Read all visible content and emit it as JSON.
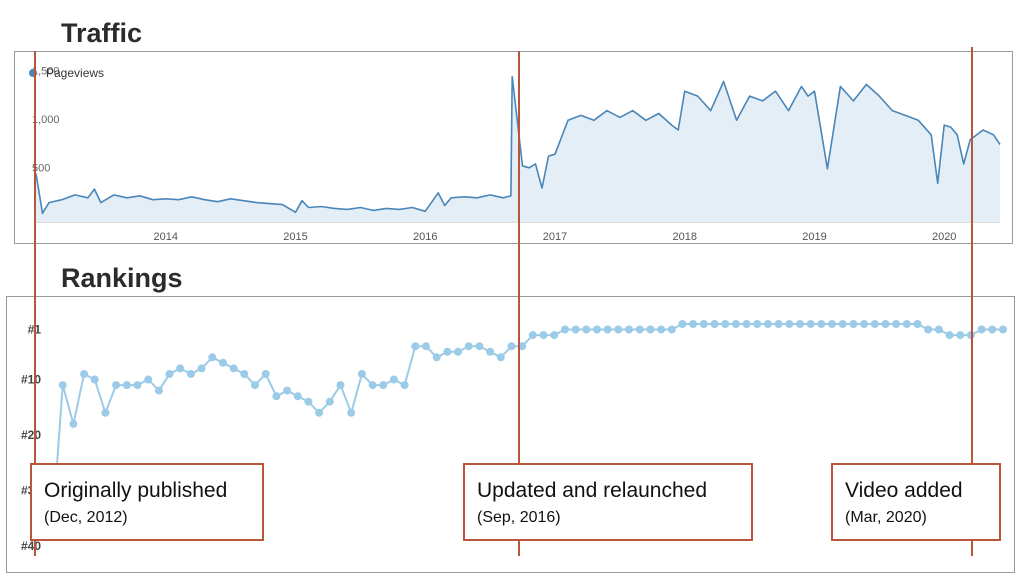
{
  "titles": {
    "traffic": "Traffic",
    "rankings": "Rankings"
  },
  "colors": {
    "traffic_line": "#4a86b8",
    "traffic_fill": "#e4eef7",
    "rank_line": "#9ccbe8",
    "marker_line": "#b8553a"
  },
  "chart_data": [
    {
      "type": "area",
      "title": "Traffic",
      "legend": {
        "entries": [
          "Pageviews"
        ],
        "placement": "top-left"
      },
      "grid": false,
      "xlim": [
        2013.0,
        2020.43
      ],
      "ylim": [
        0,
        1600
      ],
      "x_ticks": [
        "2014",
        "2015",
        "2016",
        "2017",
        "2018",
        "2019",
        "2020"
      ],
      "y_ticks": [
        "500",
        "1,000",
        "1,500"
      ],
      "series": [
        {
          "name": "Pageviews",
          "x": [
            2013.0,
            2013.05,
            2013.1,
            2013.2,
            2013.3,
            2013.4,
            2013.45,
            2013.5,
            2013.6,
            2013.7,
            2013.8,
            2013.9,
            2014.0,
            2014.1,
            2014.2,
            2014.3,
            2014.4,
            2014.5,
            2014.6,
            2014.7,
            2014.8,
            2014.9,
            2015.0,
            2015.05,
            2015.1,
            2015.2,
            2015.3,
            2015.4,
            2015.5,
            2015.6,
            2015.7,
            2015.8,
            2015.9,
            2016.0,
            2016.1,
            2016.15,
            2016.2,
            2016.3,
            2016.4,
            2016.5,
            2016.6,
            2016.66,
            2016.67,
            2016.75,
            2016.8,
            2016.85,
            2016.9,
            2016.95,
            2017.0,
            2017.1,
            2017.2,
            2017.3,
            2017.4,
            2017.5,
            2017.6,
            2017.7,
            2017.8,
            2017.9,
            2017.95,
            2018.0,
            2018.1,
            2018.2,
            2018.3,
            2018.4,
            2018.5,
            2018.6,
            2018.7,
            2018.8,
            2018.9,
            2018.95,
            2019.0,
            2019.1,
            2019.2,
            2019.3,
            2019.4,
            2019.5,
            2019.6,
            2019.7,
            2019.8,
            2019.9,
            2019.95,
            2020.0,
            2020.05,
            2020.1,
            2020.15,
            2020.2,
            2020.3,
            2020.38,
            2020.43
          ],
          "values": [
            500,
            90,
            200,
            230,
            280,
            250,
            340,
            200,
            280,
            250,
            270,
            230,
            240,
            230,
            260,
            230,
            210,
            240,
            220,
            200,
            190,
            180,
            100,
            220,
            150,
            160,
            140,
            130,
            150,
            120,
            140,
            130,
            150,
            110,
            300,
            170,
            250,
            260,
            250,
            280,
            250,
            270,
            1500,
            580,
            560,
            600,
            350,
            680,
            700,
            1050,
            1100,
            1050,
            1150,
            1080,
            1150,
            1050,
            1120,
            1000,
            950,
            1350,
            1300,
            1150,
            1450,
            1050,
            1300,
            1250,
            1350,
            1150,
            1400,
            1300,
            1350,
            550,
            1400,
            1250,
            1420,
            1300,
            1150,
            1100,
            1050,
            900,
            400,
            1000,
            980,
            900,
            600,
            850,
            950,
            900,
            800
          ]
        }
      ]
    },
    {
      "type": "line",
      "title": "Rankings",
      "grid": false,
      "ylim": [
        40,
        0
      ],
      "y_ticks": [
        "#1",
        "#10",
        "#20",
        "#30",
        "#40"
      ],
      "series": [
        {
          "name": "",
          "values": [
            38,
            11,
            18,
            9,
            10,
            16,
            11,
            11,
            11,
            10,
            12,
            9,
            8,
            9,
            8,
            6,
            7,
            8,
            9,
            11,
            9,
            13,
            12,
            13,
            14,
            16,
            14,
            11,
            16,
            9,
            11,
            11,
            10,
            11,
            4,
            4,
            6,
            5,
            5,
            4,
            4,
            5,
            6,
            4,
            4,
            2,
            2,
            2,
            1,
            1,
            1,
            1,
            1,
            1,
            1,
            1,
            1,
            1,
            1,
            0,
            0,
            0,
            0,
            0,
            0,
            0,
            0,
            0,
            0,
            0,
            0,
            0,
            0,
            0,
            0,
            0,
            0,
            0,
            0,
            0,
            0,
            0,
            1,
            1,
            2,
            2,
            2,
            1,
            1,
            1
          ]
        }
      ]
    }
  ],
  "annotations": [
    {
      "label": "Originally published",
      "date": "(Dec, 2012)"
    },
    {
      "label": "Updated and relaunched",
      "date": "(Sep, 2016)"
    },
    {
      "label": "Video added",
      "date": "(Mar, 2020)"
    }
  ]
}
